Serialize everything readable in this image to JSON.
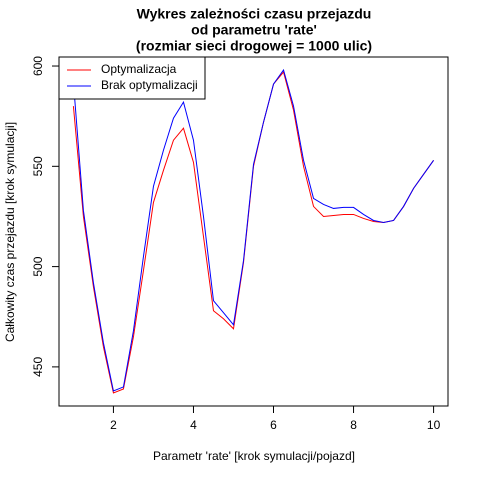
{
  "chart_data": {
    "type": "line",
    "title": [
      "Wykres zależności czasu przejazdu",
      "od parametru 'rate'",
      "(rozmiar sieci drogowej = 1000 ulic)"
    ],
    "x_label": "Parametr 'rate' [krok symulacji/pojazd]",
    "y_label": "Całkowity czas przejazdu [krok symulacji]",
    "x": [
      1,
      1.25,
      1.5,
      1.75,
      2,
      2.25,
      2.5,
      2.75,
      3,
      3.25,
      3.5,
      3.75,
      4,
      4.25,
      4.5,
      4.75,
      5,
      5.25,
      5.5,
      5.75,
      6,
      6.25,
      6.5,
      6.75,
      7,
      7.25,
      7.5,
      7.75,
      8,
      8.25,
      8.5,
      8.75,
      9,
      9.25,
      9.5,
      9.75,
      10
    ],
    "series": [
      {
        "name": "Optymalizacja",
        "color": "#ff0000",
        "values": [
          580,
          525,
          490,
          460,
          437,
          439,
          465,
          498,
          532,
          548,
          563,
          569,
          552,
          515,
          478,
          474,
          469,
          502,
          550,
          572,
          591,
          597,
          578,
          550,
          530,
          525,
          525.5,
          526,
          526,
          524,
          522.5,
          522,
          523,
          530,
          539,
          546,
          553
        ]
      },
      {
        "name": "Brak optymalizacji",
        "color": "#0000ff",
        "values": [
          592,
          528,
          492,
          462,
          438,
          440,
          468,
          505,
          540,
          558,
          574,
          582,
          563,
          525,
          483,
          477,
          471,
          503,
          551,
          572,
          591,
          598,
          580,
          553,
          534,
          531,
          529,
          529.5,
          529.5,
          526,
          523,
          522,
          523,
          530,
          539,
          546,
          553
        ]
      }
    ],
    "xlim": [
      0.64,
      10.36
    ],
    "ylim": [
      430.5,
      604.5
    ],
    "xticks": [
      2,
      4,
      6,
      8,
      10
    ],
    "yticks": [
      450,
      500,
      550,
      600
    ],
    "legend": "top-left",
    "grid": false
  }
}
